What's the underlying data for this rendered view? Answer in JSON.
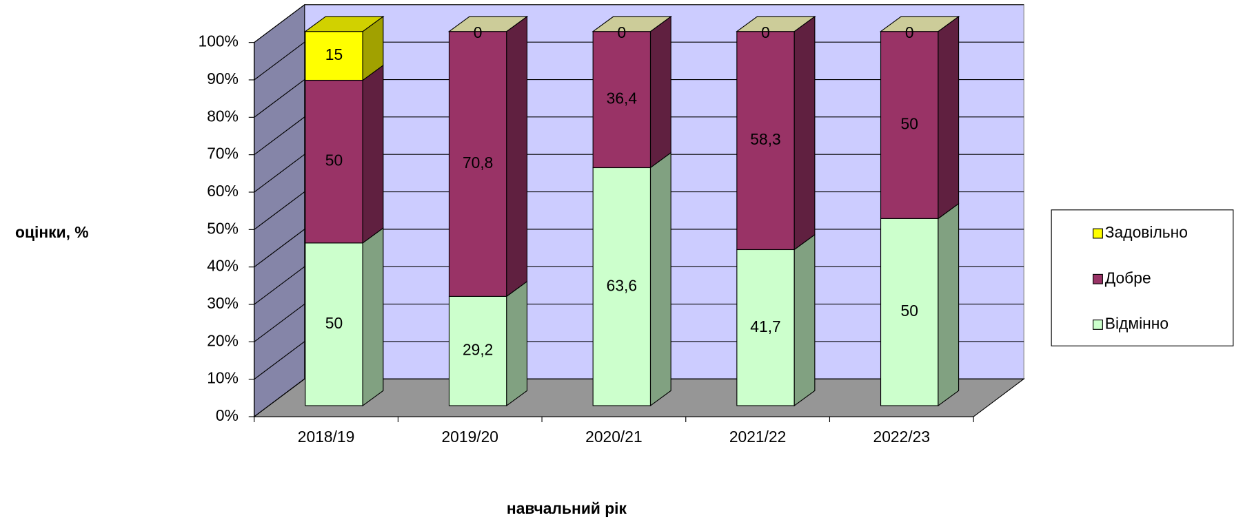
{
  "chart_data": {
    "type": "bar",
    "stacking": "percent",
    "y_axis_label": "оцінки, %",
    "x_axis_label": "навчальний рік",
    "categories": [
      "2018/19",
      "2019/20",
      "2020/21",
      "2021/22",
      "2022/23"
    ],
    "series": [
      {
        "name": "Відмінно",
        "color": "#ccffcc",
        "values": [
          50,
          29.2,
          63.6,
          41.7,
          50
        ],
        "value_labels": [
          "50",
          "29,2",
          "63,6",
          "41,7",
          "50"
        ]
      },
      {
        "name": "Добре",
        "color": "#993366",
        "values": [
          50,
          70.8,
          36.4,
          58.3,
          50
        ],
        "value_labels": [
          "50",
          "70,8",
          "36,4",
          "58,3",
          "50"
        ]
      },
      {
        "name": "Задовільно",
        "color": "#ffff00",
        "values": [
          15,
          0,
          0,
          0,
          0
        ],
        "value_labels": [
          "15",
          "0",
          "0",
          "0",
          "0"
        ]
      }
    ],
    "ylim": [
      0,
      100
    ],
    "yticks": [
      {
        "value": 0,
        "label": "0%"
      },
      {
        "value": 10,
        "label": "10%"
      },
      {
        "value": 20,
        "label": "20%"
      },
      {
        "value": 30,
        "label": "30%"
      },
      {
        "value": 40,
        "label": "40%"
      },
      {
        "value": 50,
        "label": "50%"
      },
      {
        "value": 60,
        "label": "60%"
      },
      {
        "value": 70,
        "label": "70%"
      },
      {
        "value": 80,
        "label": "80%"
      },
      {
        "value": 90,
        "label": "90%"
      },
      {
        "value": 100,
        "label": "100%"
      }
    ],
    "grid": true,
    "legend": "right"
  }
}
